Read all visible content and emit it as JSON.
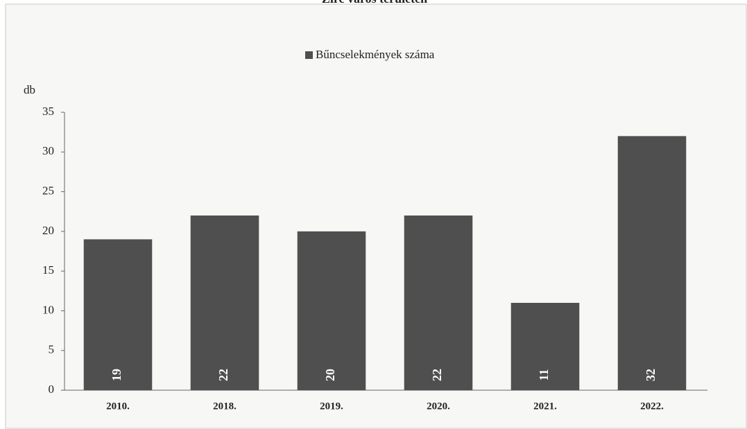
{
  "chart_data": {
    "type": "bar",
    "title": "Zirc város területén",
    "y_label": "db",
    "legend": "Bűncselekmények száma",
    "categories": [
      "2010.",
      "2018.",
      "2019.",
      "2020.",
      "2021.",
      "2022."
    ],
    "values": [
      19,
      22,
      20,
      22,
      11,
      32
    ],
    "color": "#4f4f4f",
    "ylim": [
      0,
      35
    ],
    "yticks": [
      0,
      5,
      10,
      15,
      20,
      25,
      30,
      35
    ],
    "grid": false
  }
}
